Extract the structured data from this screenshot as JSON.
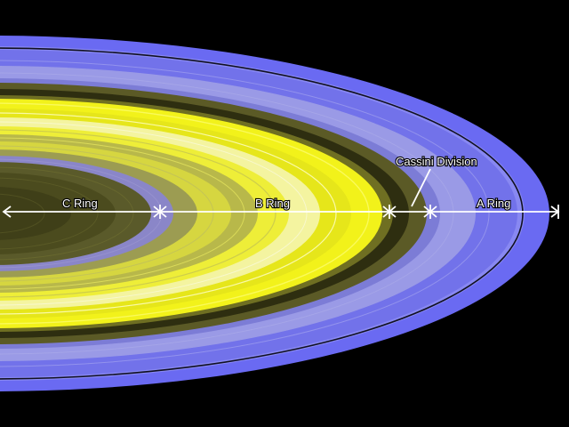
{
  "labels": {
    "c_ring": "C Ring",
    "b_ring": "B Ring",
    "cassini_division": "Cassini Division",
    "a_ring": "A Ring"
  },
  "colors": {
    "background": "#000000",
    "a_ring": "#6a6af2",
    "a_ring_light": "#8c8cf4",
    "b_ring_bright": "#f2f21a",
    "b_ring_pale": "#f4f4a0",
    "b_ring_olive": "#6f6f22",
    "cassini_division": "#2e2e10",
    "c_ring_olive": "#4b4b1e",
    "c_ring_lavender": "#8a86c8",
    "annotation": "#ffffff"
  }
}
